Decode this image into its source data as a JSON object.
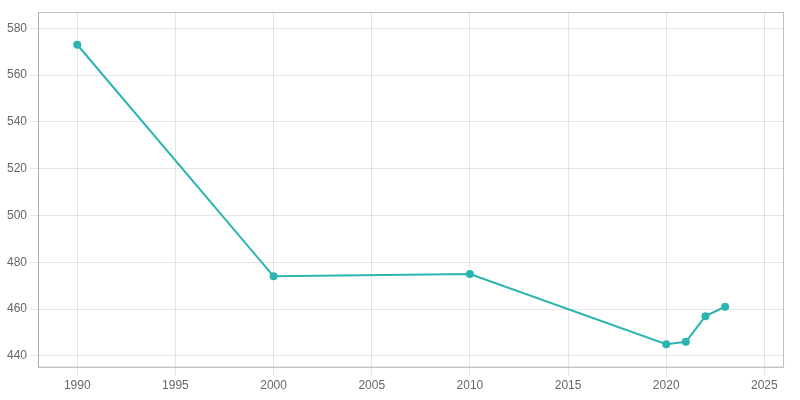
{
  "chart_data": {
    "type": "line",
    "x": [
      1990,
      2000,
      2010,
      2020,
      2021,
      2022,
      2023
    ],
    "values": [
      573,
      474,
      475,
      445,
      446,
      457,
      461
    ],
    "color": "#2ab5b0",
    "marker": "circle",
    "xlim": [
      1988,
      2026
    ],
    "xticks": [
      1990,
      1995,
      2000,
      2005,
      2010,
      2015,
      2020,
      2025
    ],
    "ylim": [
      435,
      587
    ],
    "yticks": [
      440,
      460,
      480,
      500,
      520,
      540,
      560,
      580
    ],
    "grid": true
  }
}
